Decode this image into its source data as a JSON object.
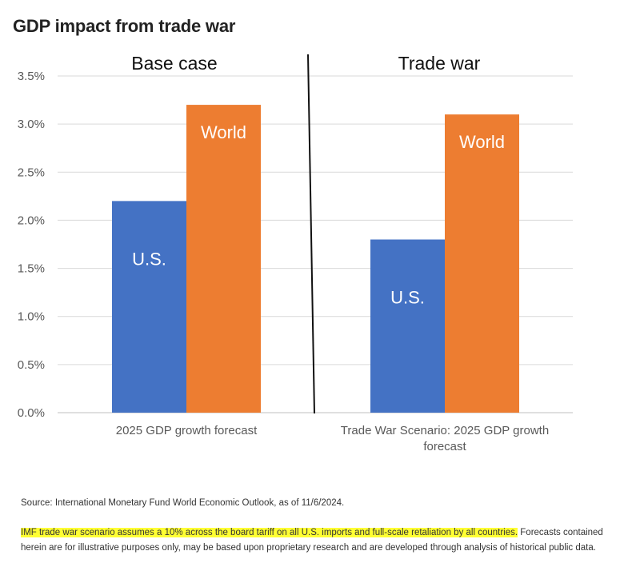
{
  "title": "GDP impact from trade war",
  "chart_data": {
    "type": "bar",
    "panels": [
      {
        "heading": "Base case",
        "category": "2025 GDP growth forecast",
        "bars": [
          {
            "label": "U.S.",
            "value": 2.2,
            "color": "#4472c4"
          },
          {
            "label": "World",
            "value": 3.2,
            "color": "#ed7d31"
          }
        ]
      },
      {
        "heading": "Trade war",
        "category": "Trade War Scenario: 2025 GDP growth forecast",
        "bars": [
          {
            "label": "U.S.",
            "value": 1.8,
            "color": "#4472c4"
          },
          {
            "label": "World",
            "value": 3.1,
            "color": "#ed7d31"
          }
        ]
      }
    ],
    "y_ticks": [
      "0.0%",
      "0.5%",
      "1.0%",
      "1.5%",
      "2.0%",
      "2.5%",
      "3.0%",
      "3.5%"
    ],
    "ylim": [
      0,
      3.5
    ],
    "grid": true
  },
  "source": "Source: International Monetary Fund World Economic Outlook, as of 11/6/2024.",
  "note_highlight": "IMF trade war scenario assumes a 10% across the board tariff on all U.S. imports and full-scale retaliation by all countries.",
  "note_rest": " Forecasts contained herein are for illustrative purposes only, may be based upon proprietary research and are developed through analysis of historical public data."
}
